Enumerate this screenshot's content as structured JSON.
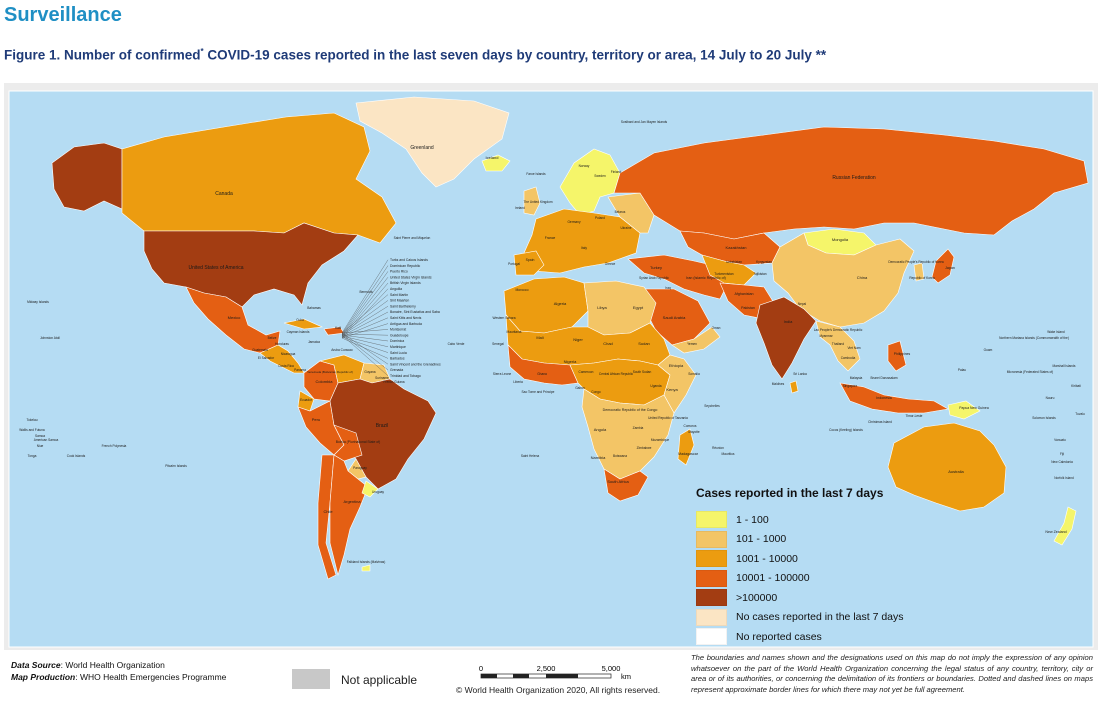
{
  "header": {
    "section_title": "Surveillance",
    "figure_title": "Figure 1. Number of confirmed",
    "figure_title_sup": "*",
    "figure_title_rest": " COVID-19 cases reported in the last seven days by country, territory or area, 14 July to 20 July **"
  },
  "map": {
    "colors": {
      "ocean": "#b5dcf3",
      "cat1": "#f5f56a",
      "cat2": "#f3c566",
      "cat3": "#ec9c10",
      "cat4": "#e45f13",
      "cat5": "#a33d12",
      "no_cases": "#fbe5c4",
      "no_reported": "#ffffff",
      "not_applicable": "#c8c8c8",
      "border": "#ffffff"
    },
    "labels": {
      "greenland": "Greenland",
      "canada": "Canada",
      "usa": "United States of America",
      "iceland": "Iceland",
      "russia": "Russian Federation",
      "kazakhstan": "Kazakhstan",
      "mongolia": "Mongolia",
      "china": "China",
      "india": "India",
      "brazil": "Brazil",
      "australia": "Australia",
      "mexico": "Mexico",
      "argentina": "Argentina",
      "algeria": "Algeria",
      "libya": "Libya",
      "egypt": "Egypt",
      "niger": "Niger",
      "chad": "Chad",
      "sudan": "Sudan",
      "mali": "Mali",
      "nigeria": "Nigeria",
      "south_africa": "South Africa",
      "namibia": "Namibia",
      "angola": "Angola",
      "dem_congo": "Democratic Republic of the Congo",
      "ethiopia": "Ethiopia",
      "kenya": "Kenya",
      "madagascar": "Madagascar",
      "iran": "Iran (Islamic Republic of)",
      "saudi": "Saudi Arabia",
      "turkey": "Turkey",
      "afghanistan": "Afghanistan",
      "pakistan": "Pakistan",
      "indonesia": "Indonesia",
      "peru": "Peru",
      "bolivia": "Bolivia (Plurinational State of)",
      "colombia": "Colombia",
      "chile": "Chile",
      "new_zealand": "New Zealand",
      "papua": "Papua New Guinea",
      "japan": "Japan",
      "dprk": "Democratic People's Republic of Korea",
      "rok": "Republic of Korea",
      "philippines": "Philippines",
      "falkland": "Falkland Islands (Malvinas)",
      "svalbard": "Svalbard and Jan Mayen Islands",
      "faroe": "Faroe Islands",
      "uk": "The United Kingdom",
      "ireland": "Ireland",
      "france": "France",
      "spain": "Spain",
      "portugal": "Portugal",
      "morocco": "Morocco",
      "western_sahara": "Western Sahara",
      "norway": "Norway",
      "sweden": "Sweden",
      "finland": "Finland",
      "germany": "Germany",
      "poland": "Poland",
      "ukraine": "Ukraine",
      "belarus": "Belarus",
      "italy": "Italy",
      "greece": "Greece",
      "somalia": "Somalia",
      "yemen": "Yemen",
      "oman": "Oman",
      "iraq": "Iraq",
      "syria": "Syrian Arab Republic",
      "sri_lanka": "Sri Lanka",
      "maldives": "Maldives",
      "nepal": "Nepal",
      "myanmar": "Myanmar",
      "thailand": "Thailand",
      "vietnam": "Viet Nam",
      "cambodia": "Cambodia",
      "lao": "Lao People's Democratic Republic",
      "malaysia": "Malaysia",
      "singapore": "Singapore",
      "brunei": "Brunei Darussalam",
      "timor": "Timor-Leste",
      "cuba": "Cuba",
      "bahamas": "Bahamas",
      "bermuda": "Bermuda",
      "venezuela": "Venezuela (Bolivarian Republic of)",
      "guyana": "Guyana",
      "suriname": "Suriname",
      "french_guiana": "French Guiana",
      "ecuador": "Ecuador",
      "paraguay": "Paraguay",
      "uruguay": "Uruguay",
      "tanzania": "United Republic of Tanzania",
      "zambia": "Zambia",
      "botswana": "Botswana",
      "zimbabwe": "Zimbabwe",
      "mozambique": "Mozambique",
      "cameroon": "Cameroon",
      "gabon": "Gabon",
      "congo": "Congo",
      "car": "Central African Republic",
      "south_sudan": "South Sudan",
      "uganda": "Uganda",
      "mauritania": "Mauritania",
      "senegal": "Senegal",
      "ghana": "Ghana",
      "liberia": "Liberia",
      "sierra_leone": "Sierra Leone",
      "cabo_verde": "Cabo Verde",
      "st_helena": "Saint Helena",
      "sao_tome": "Sao Tome and Principe",
      "seychelles": "Seychelles",
      "mauritius": "Mauritius",
      "reunion": "Réunion",
      "comoros": "Comoros",
      "mayotte": "Mayotte",
      "midway": "Midway Islands",
      "johnston": "Johnston Atoll",
      "tokelau": "Tokelau",
      "wallis": "Wallis and Futuna",
      "samoa": "Samoa",
      "american_samoa": "American Samoa",
      "niue": "Niue",
      "tonga": "Tonga",
      "cook": "Cook Islands",
      "french_polynesia": "French Polynesia",
      "pitcairn": "Pitcairn Islands",
      "wake": "Wake Island",
      "n_mariana": "Northern Mariana Islands (Commonwealth of the)",
      "guam": "Guam",
      "marshall": "Marshall Islands",
      "micronesia": "Micronesia (Federated States of)",
      "palau": "Palau",
      "kiribati": "Kiribati",
      "nauru": "Nauru",
      "solomon": "Solomon Islands",
      "tuvalu": "Tuvalu",
      "vanuatu": "Vanuatu",
      "fiji": "Fiji",
      "new_caledonia": "New Caledonia",
      "norfolk": "Norfolk Island",
      "christmas": "Christmas Island",
      "cocos": "Cocos (Keeling) Islands",
      "st_pierre": "Saint Pierre and Miquelon",
      "turkmenistan": "Turkmenistan",
      "uzbekistan": "Uzbekistan",
      "kyrgyzstan": "Kyrgyzstan",
      "tajikistan": "Tajikistan",
      "guatemala": "Guatemala",
      "el_salvador": "El Salvador",
      "honduras": "Honduras",
      "nicaragua": "Nicaragua",
      "costa_rica": "Costa Rica",
      "panama": "Panama",
      "jamaica": "Jamaica",
      "haiti": "Haiti",
      "belize": "Belize",
      "cayman": "Cayman Islands",
      "aruba_curacao": "Aruba Curacao"
    },
    "caribbean_list": [
      "Turks and Caicos Islands",
      "Dominican Republic",
      "Puerto Rico",
      "United States Virgin Islands",
      "British Virgin Islands",
      "Anguilla",
      "Saint Martin",
      "Sint Maarten",
      "Saint Barthelemy",
      "Bonaire, Sint Eustatius and Saba",
      "Saint Kitts and Nevis",
      "Antigua and Barbuda",
      "Montserrat",
      "Guadeloupe",
      "Dominica",
      "Martinique",
      "Saint Lucia",
      "Barbados",
      "Saint Vincent and the Grenadines",
      "Grenada",
      "Trinidad and Tobago"
    ]
  },
  "legend": {
    "title": "Cases reported in the last 7 days",
    "items": [
      {
        "label": "1 - 100",
        "color": "#f5f56a"
      },
      {
        "label": "101 - 1000",
        "color": "#f3c566"
      },
      {
        "label": "1001 - 10000",
        "color": "#ec9c10"
      },
      {
        "label": "10001 - 100000",
        "color": "#e45f13"
      },
      {
        "label": ">100000",
        "color": "#a33d12"
      },
      {
        "label": "No cases reported in the last 7 days",
        "color": "#fbe5c4"
      },
      {
        "label": "No reported cases",
        "color": "#ffffff"
      }
    ],
    "not_applicable": "Not applicable"
  },
  "footer": {
    "data_source_key": "Data Source",
    "data_source_value": ": World Health Organization",
    "map_production_key": "Map Production",
    "map_production_value": ": WHO Health Emergencies Programme",
    "scale_ticks": [
      "0",
      "2,500",
      "5,000"
    ],
    "scale_unit": "km",
    "copyright": "© World Health Organization  2020,  All rights reserved.",
    "disclaimer": "The boundaries and names shown and the designations used on this map do not imply the expression of any opinion whatsoever on the part of the World Health Organization concerning the legal status of any country, territory, city or area or of its authorities, or concerning the delimitation of its frontiers or boundaries. Dotted and dashed lines on maps represent approximate border lines for which there may not yet be full agreement."
  }
}
